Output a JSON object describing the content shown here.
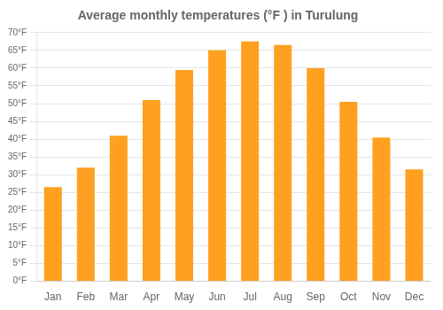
{
  "chart_data": {
    "type": "bar",
    "title": "Average monthly temperatures (°F ) in Turulung",
    "categories": [
      "Jan",
      "Feb",
      "Mar",
      "Apr",
      "May",
      "Jun",
      "Jul",
      "Aug",
      "Sep",
      "Oct",
      "Nov",
      "Dec"
    ],
    "values": [
      26.5,
      32.0,
      41.0,
      51.0,
      59.5,
      65.0,
      67.5,
      66.5,
      60.0,
      50.5,
      40.5,
      31.5
    ],
    "color": "#FFA020",
    "ylim": [
      0,
      70
    ],
    "yticks": [
      {
        "value": 0,
        "label": "0°F"
      },
      {
        "value": 5,
        "label": "5°F"
      },
      {
        "value": 10,
        "label": "10°F"
      },
      {
        "value": 15,
        "label": "15°F"
      },
      {
        "value": 20,
        "label": "20°F"
      },
      {
        "value": 25,
        "label": "25°F"
      },
      {
        "value": 30,
        "label": "30°F"
      },
      {
        "value": 35,
        "label": "35°F"
      },
      {
        "value": 40,
        "label": "40°F"
      },
      {
        "value": 45,
        "label": "45°F"
      },
      {
        "value": 50,
        "label": "50°F"
      },
      {
        "value": 55,
        "label": "55°F"
      },
      {
        "value": 60,
        "label": "60°F"
      },
      {
        "value": 65,
        "label": "65°F"
      },
      {
        "value": 70,
        "label": "70°F"
      }
    ],
    "grid": true
  }
}
